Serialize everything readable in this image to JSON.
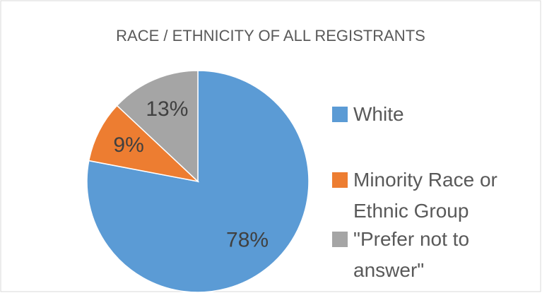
{
  "chart_data": {
    "type": "pie",
    "title": "RACE / ETHNICITY OF ALL REGISTRANTS",
    "categories": [
      "White",
      "Minority Race or Ethnic Group",
      "\"Prefer not to answer\""
    ],
    "values": [
      78,
      9,
      13
    ],
    "value_labels": [
      "78%",
      "9%",
      "13%"
    ],
    "colors": [
      "#5b9bd5",
      "#ed7d31",
      "#a5a5a5"
    ],
    "legend": "right"
  }
}
